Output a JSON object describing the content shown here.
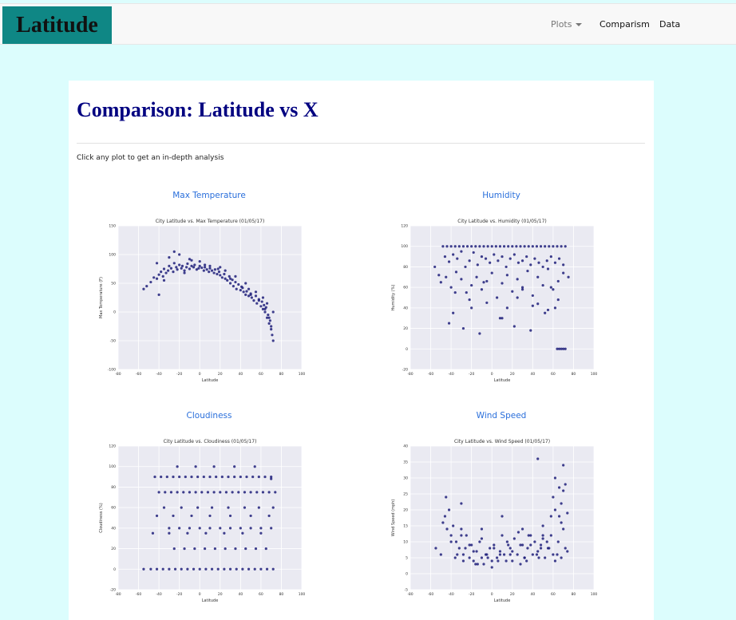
{
  "navbar": {
    "brand": "Latitude",
    "plots_label": "Plots",
    "comparison_label": "Comparism",
    "data_label": "Data"
  },
  "page": {
    "title": "Comparison: Latitude vs X",
    "instruction": "Click any plot to get an in-depth analysis"
  },
  "plots": [
    {
      "label": "Max Temperature"
    },
    {
      "label": "Humidity"
    },
    {
      "label": "Cloudiness"
    },
    {
      "label": "Wind Speed"
    }
  ],
  "chart_data": [
    {
      "type": "scatter",
      "title": "City Latitude vs. Max Temperature (01/05/17)",
      "xlabel": "Latitude",
      "ylabel": "Max Temperature (F)",
      "xlim": [
        -80,
        100
      ],
      "ylim": [
        -100,
        150
      ],
      "xticks": [
        -80,
        -60,
        -40,
        -20,
        0,
        20,
        40,
        60,
        80,
        100
      ],
      "yticks": [
        -100,
        -50,
        0,
        50,
        100,
        150
      ],
      "grid": true,
      "color": "#1f1f7a",
      "x": [
        -55,
        -52,
        -48,
        -45,
        -42,
        -40,
        -38,
        -36,
        -35,
        -33,
        -31,
        -30,
        -28,
        -26,
        -25,
        -23,
        -22,
        -20,
        -18,
        -17,
        -15,
        -13,
        -12,
        -10,
        -8,
        -6,
        -5,
        -3,
        -1,
        0,
        2,
        4,
        5,
        7,
        9,
        10,
        12,
        14,
        15,
        17,
        19,
        20,
        22,
        24,
        25,
        27,
        29,
        30,
        32,
        33,
        35,
        36,
        38,
        40,
        41,
        43,
        45,
        46,
        48,
        50,
        51,
        53,
        55,
        56,
        58,
        60,
        61,
        62,
        63,
        64,
        65,
        66,
        67,
        68,
        69,
        70,
        71,
        72,
        -42,
        -30,
        -20,
        -8,
        5,
        18,
        30,
        42,
        50,
        58,
        64,
        70,
        -35,
        -15,
        10,
        35,
        55,
        66,
        -25,
        0,
        25,
        45,
        62,
        72,
        -40,
        -10,
        20,
        48,
        68
      ],
      "y": [
        40,
        45,
        52,
        60,
        58,
        65,
        70,
        62,
        75,
        68,
        72,
        80,
        76,
        70,
        85,
        78,
        74,
        82,
        76,
        80,
        72,
        78,
        84,
        75,
        80,
        78,
        82,
        74,
        76,
        80,
        77,
        72,
        78,
        74,
        70,
        76,
        72,
        68,
        74,
        66,
        70,
        64,
        60,
        66,
        58,
        55,
        62,
        50,
        56,
        45,
        52,
        40,
        48,
        38,
        44,
        35,
        30,
        36,
        28,
        32,
        25,
        20,
        28,
        15,
        22,
        10,
        18,
        5,
        12,
        0,
        8,
        -10,
        -5,
        -20,
        -15,
        -30,
        -40,
        -50,
        85,
        95,
        100,
        90,
        82,
        75,
        58,
        42,
        30,
        20,
        5,
        -25,
        55,
        68,
        80,
        62,
        35,
        15,
        105,
        88,
        72,
        50,
        25,
        0,
        30,
        92,
        78,
        40,
        -10
      ]
    },
    {
      "type": "scatter",
      "title": "City Latitude vs. Humidity (01/05/17)",
      "xlabel": "Latitude",
      "ylabel": "Humidity (%)",
      "xlim": [
        -80,
        100
      ],
      "ylim": [
        -20,
        120
      ],
      "xticks": [
        -80,
        -60,
        -40,
        -20,
        0,
        20,
        40,
        60,
        80,
        100
      ],
      "yticks": [
        -20,
        0,
        20,
        40,
        60,
        80,
        100,
        120
      ],
      "grid": true,
      "color": "#1f1f7a",
      "x": [
        -48,
        -44,
        -40,
        -36,
        -32,
        -28,
        -24,
        -20,
        -16,
        -12,
        -8,
        -4,
        0,
        4,
        8,
        12,
        16,
        20,
        24,
        28,
        32,
        36,
        40,
        44,
        48,
        52,
        56,
        60,
        64,
        68,
        72,
        -46,
        -42,
        -38,
        -34,
        -30,
        -26,
        -22,
        -18,
        -14,
        -10,
        -6,
        -2,
        2,
        6,
        10,
        14,
        18,
        22,
        26,
        30,
        34,
        38,
        42,
        46,
        50,
        54,
        58,
        62,
        66,
        70,
        -56,
        -52,
        -50,
        -45,
        -40,
        -35,
        -30,
        -25,
        -20,
        -15,
        -10,
        -5,
        0,
        5,
        10,
        15,
        20,
        25,
        30,
        35,
        40,
        45,
        50,
        55,
        60,
        65,
        70,
        75,
        -38,
        -20,
        -5,
        10,
        25,
        40,
        55,
        65,
        -42,
        -28,
        -12,
        8,
        22,
        38,
        52,
        62,
        64,
        66,
        68,
        70,
        72,
        -36,
        -22,
        -8,
        15,
        30,
        45,
        58
      ],
      "y": [
        100,
        100,
        100,
        100,
        100,
        100,
        100,
        100,
        100,
        100,
        100,
        100,
        100,
        100,
        100,
        100,
        100,
        100,
        100,
        100,
        100,
        100,
        100,
        100,
        100,
        100,
        100,
        100,
        100,
        100,
        100,
        90,
        85,
        92,
        88,
        95,
        80,
        86,
        94,
        82,
        90,
        88,
        84,
        92,
        86,
        90,
        80,
        88,
        92,
        84,
        86,
        90,
        82,
        88,
        84,
        80,
        86,
        90,
        84,
        88,
        82,
        80,
        72,
        65,
        70,
        60,
        75,
        68,
        55,
        62,
        70,
        58,
        66,
        74,
        50,
        64,
        72,
        56,
        68,
        60,
        76,
        52,
        70,
        62,
        78,
        58,
        66,
        74,
        70,
        35,
        40,
        45,
        30,
        50,
        42,
        38,
        48,
        25,
        20,
        15,
        30,
        22,
        18,
        35,
        40,
        0,
        0,
        0,
        0,
        0,
        55,
        48,
        65,
        40,
        58,
        44,
        60
      ]
    },
    {
      "type": "scatter",
      "title": "City Latitude vs. Cloudiness (01/05/17)",
      "xlabel": "Latitude",
      "ylabel": "Cloudiness (%)",
      "xlim": [
        -80,
        100
      ],
      "ylim": [
        -20,
        120
      ],
      "xticks": [
        -80,
        -60,
        -40,
        -20,
        0,
        20,
        40,
        60,
        80,
        100
      ],
      "yticks": [
        -20,
        0,
        20,
        40,
        60,
        80,
        100,
        120
      ],
      "grid": true,
      "color": "#1f1f7a",
      "x": [
        -55,
        -48,
        -42,
        -36,
        -30,
        -24,
        -18,
        -12,
        -6,
        0,
        6,
        12,
        18,
        24,
        30,
        36,
        42,
        48,
        54,
        60,
        66,
        72,
        -44,
        -38,
        -32,
        -26,
        -20,
        -14,
        -8,
        -2,
        4,
        10,
        16,
        22,
        28,
        34,
        40,
        46,
        52,
        58,
        64,
        70,
        -40,
        -34,
        -28,
        -22,
        -16,
        -10,
        -4,
        2,
        8,
        14,
        20,
        26,
        32,
        38,
        44,
        50,
        56,
        62,
        68,
        74,
        -30,
        -20,
        -10,
        0,
        10,
        20,
        30,
        40,
        50,
        60,
        70,
        -25,
        -15,
        -5,
        5,
        15,
        25,
        35,
        45,
        55,
        65,
        -35,
        -18,
        -2,
        12,
        28,
        44,
        58,
        72,
        -46,
        -30,
        -12,
        6,
        24,
        42,
        60,
        -42,
        -26,
        -8,
        10,
        30,
        50,
        68,
        -22,
        -4,
        14,
        34,
        54,
        70
      ],
      "y": [
        0,
        0,
        0,
        0,
        0,
        0,
        0,
        0,
        0,
        0,
        0,
        0,
        0,
        0,
        0,
        0,
        0,
        0,
        0,
        0,
        0,
        0,
        90,
        90,
        90,
        90,
        90,
        90,
        90,
        90,
        90,
        90,
        90,
        90,
        90,
        90,
        90,
        90,
        90,
        90,
        90,
        90,
        75,
        75,
        75,
        75,
        75,
        75,
        75,
        75,
        75,
        75,
        75,
        75,
        75,
        75,
        75,
        75,
        75,
        75,
        75,
        75,
        40,
        40,
        40,
        40,
        40,
        40,
        40,
        40,
        40,
        40,
        40,
        20,
        20,
        20,
        20,
        20,
        20,
        20,
        20,
        20,
        20,
        60,
        60,
        60,
        60,
        60,
        60,
        60,
        60,
        35,
        35,
        35,
        35,
        35,
        35,
        35,
        52,
        52,
        52,
        52,
        52,
        52,
        52,
        100,
        100,
        100,
        100,
        100,
        88
      ]
    },
    {
      "type": "scatter",
      "title": "City Latitude vs. Wind Speed (01/05/17)",
      "xlabel": "Latitude",
      "ylabel": "Wind Speed (mph)",
      "xlim": [
        -80,
        100
      ],
      "ylim": [
        -5,
        40
      ],
      "xticks": [
        -80,
        -60,
        -40,
        -20,
        0,
        20,
        40,
        60,
        80,
        100
      ],
      "yticks": [
        -5,
        0,
        5,
        10,
        15,
        20,
        25,
        30,
        35,
        40
      ],
      "grid": true,
      "color": "#1f1f7a",
      "x": [
        -55,
        -50,
        -45,
        -42,
        -40,
        -38,
        -35,
        -32,
        -30,
        -28,
        -25,
        -22,
        -20,
        -18,
        -15,
        -12,
        -10,
        -8,
        -5,
        -2,
        0,
        2,
        5,
        8,
        10,
        12,
        15,
        18,
        20,
        22,
        25,
        28,
        30,
        32,
        35,
        38,
        40,
        42,
        45,
        48,
        50,
        52,
        55,
        58,
        60,
        62,
        65,
        68,
        70,
        72,
        -46,
        -40,
        -34,
        -28,
        -22,
        -16,
        -10,
        -4,
        2,
        8,
        14,
        20,
        26,
        32,
        38,
        44,
        50,
        56,
        62,
        68,
        74,
        -44,
        -36,
        -26,
        -14,
        -6,
        6,
        16,
        28,
        36,
        46,
        54,
        64,
        70,
        -48,
        -30,
        -18,
        0,
        18,
        34,
        48,
        60,
        66,
        72,
        45,
        70,
        62,
        -30,
        -10,
        10,
        30,
        50,
        68,
        58,
        66,
        74
      ],
      "y": [
        8,
        6,
        24,
        20,
        12,
        15,
        10,
        8,
        14,
        6,
        12,
        5,
        9,
        4,
        7,
        10,
        5,
        3,
        6,
        8,
        4,
        9,
        5,
        7,
        12,
        6,
        10,
        8,
        4,
        11,
        6,
        9,
        14,
        5,
        8,
        12,
        6,
        10,
        7,
        9,
        15,
        5,
        8,
        12,
        6,
        20,
        10,
        5,
        14,
        8,
        18,
        10,
        6,
        4,
        9,
        3,
        11,
        5,
        8,
        6,
        4,
        7,
        13,
        5,
        9,
        6,
        11,
        8,
        4,
        16,
        7,
        14,
        5,
        8,
        3,
        6,
        4,
        9,
        3,
        12,
        5,
        10,
        6,
        26,
        16,
        12,
        7,
        2,
        6,
        4,
        8,
        24,
        18,
        28,
        36,
        34,
        30,
        22,
        14,
        18,
        9,
        12,
        22,
        18,
        27,
        19
      ]
    }
  ]
}
